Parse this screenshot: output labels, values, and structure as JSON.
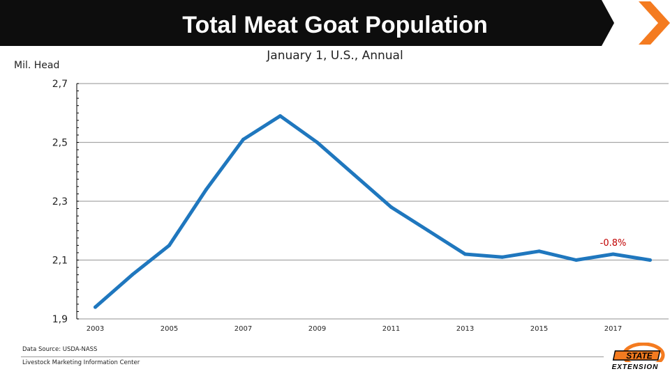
{
  "header": {
    "title": "Total Meat Goat Population",
    "subtitle": "January 1, U.S., Annual"
  },
  "colors": {
    "title_bar": "#0d0d0d",
    "accent": "#f47b20",
    "line": "#1f77be",
    "annotation": "#c00000"
  },
  "chart_data": {
    "type": "line",
    "title": "",
    "ylabel": "Mil. Head",
    "xlabel": "",
    "ylim": [
      1.9,
      2.7
    ],
    "yticks": [
      1.9,
      2.1,
      2.3,
      2.5,
      2.7
    ],
    "ytick_labels": [
      "1,9",
      "2,1",
      "2,3",
      "2,5",
      "2,7"
    ],
    "xlim": [
      2002.5,
      2018.5
    ],
    "xticks": [
      2003,
      2005,
      2007,
      2009,
      2011,
      2013,
      2015,
      2017
    ],
    "xtick_labels": [
      "2003",
      "2005",
      "2007",
      "2009",
      "2011",
      "2013",
      "2015",
      "2017"
    ],
    "grid": "horizontal",
    "series": [
      {
        "x": [
          2003,
          2004,
          2005,
          2006,
          2007,
          2008,
          2009,
          2010,
          2011,
          2012,
          2013,
          2014,
          2015,
          2016,
          2017,
          2018
        ],
        "values": [
          1.94,
          2.05,
          2.15,
          2.34,
          2.51,
          2.59,
          2.5,
          2.39,
          2.28,
          2.2,
          2.12,
          2.11,
          2.13,
          2.1,
          2.12,
          2.1
        ]
      }
    ],
    "annotations": [
      {
        "text": "-0.8%",
        "x": 2017.0,
        "y": 2.16
      }
    ]
  },
  "footer": {
    "source": "Data Source: USDA-NASS",
    "org": "Livestock Marketing Information Center"
  },
  "logo": {
    "text_top": "STATE",
    "text_bottom": "EXTENSION"
  }
}
